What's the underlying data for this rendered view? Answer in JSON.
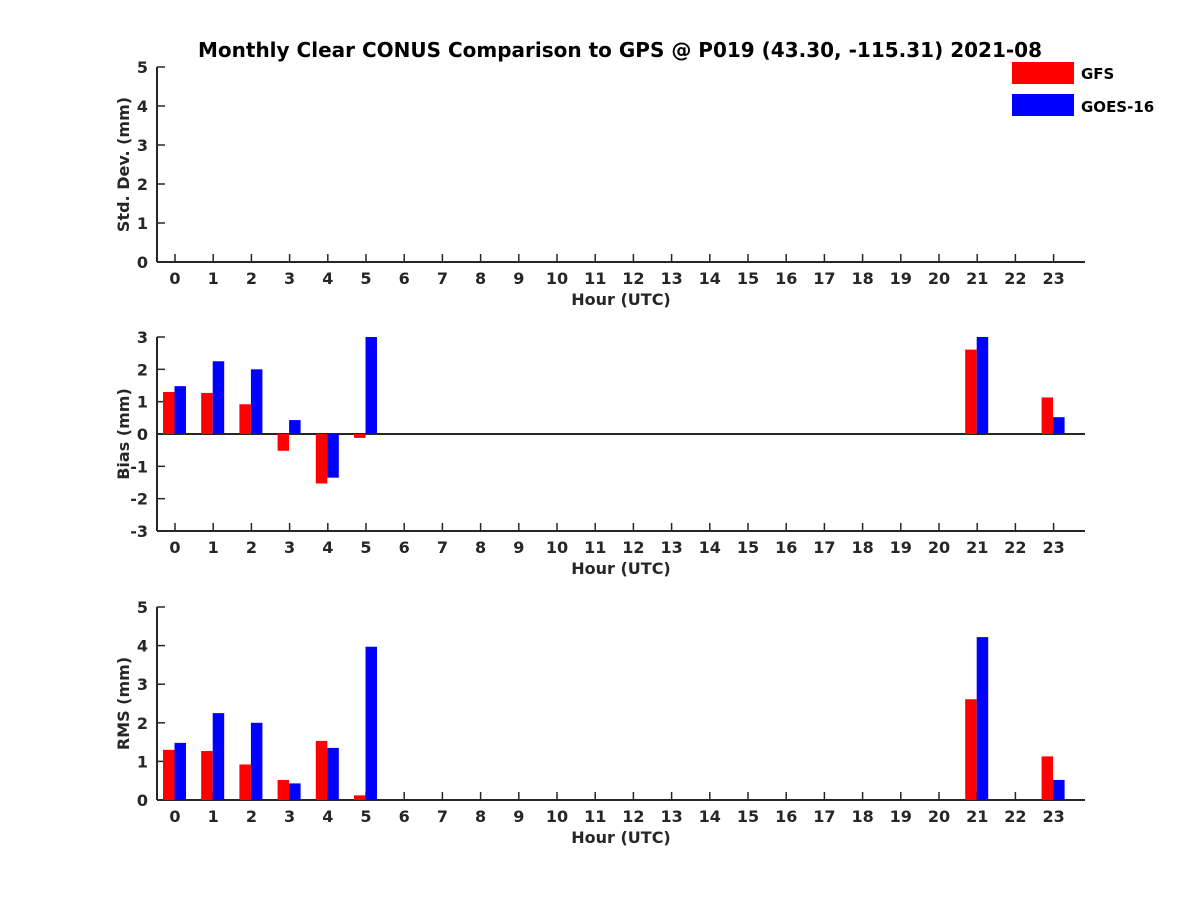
{
  "title": "Monthly Clear CONUS Comparison to GPS @ P019 (43.30, -115.31) 2021-08",
  "legend": [
    {
      "name": "GFS",
      "color": "#ff0000"
    },
    {
      "name": "GOES-16",
      "color": "#0000ff"
    }
  ],
  "chart_data": [
    {
      "type": "bar",
      "panel": "std",
      "xlabel": "Hour (UTC)",
      "ylabel": "Std. Dev. (mm)",
      "ylim": [
        0,
        5
      ],
      "yticks": [
        0,
        1,
        2,
        3,
        4,
        5
      ],
      "categories": [
        "0",
        "1",
        "2",
        "3",
        "4",
        "5",
        "6",
        "7",
        "8",
        "9",
        "10",
        "11",
        "12",
        "13",
        "14",
        "15",
        "16",
        "17",
        "18",
        "19",
        "20",
        "21",
        "22",
        "23"
      ],
      "series": [
        {
          "name": "GFS",
          "color": "#ff0000",
          "values": [
            null,
            null,
            null,
            null,
            null,
            null,
            null,
            null,
            null,
            null,
            null,
            null,
            null,
            null,
            null,
            null,
            null,
            null,
            null,
            null,
            null,
            null,
            null,
            null
          ]
        },
        {
          "name": "GOES-16",
          "color": "#0000ff",
          "values": [
            null,
            null,
            null,
            null,
            null,
            null,
            null,
            null,
            null,
            null,
            null,
            null,
            null,
            null,
            null,
            null,
            null,
            null,
            null,
            null,
            null,
            null,
            null,
            null
          ]
        }
      ]
    },
    {
      "type": "bar",
      "panel": "bias",
      "xlabel": "Hour (UTC)",
      "ylabel": "Bias (mm)",
      "ylim": [
        -3,
        3
      ],
      "yticks": [
        -3,
        -2,
        -1,
        0,
        1,
        2,
        3
      ],
      "zero_line": true,
      "categories": [
        "0",
        "1",
        "2",
        "3",
        "4",
        "5",
        "6",
        "7",
        "8",
        "9",
        "10",
        "11",
        "12",
        "13",
        "14",
        "15",
        "16",
        "17",
        "18",
        "19",
        "20",
        "21",
        "22",
        "23"
      ],
      "series": [
        {
          "name": "GFS",
          "color": "#ff0000",
          "values": [
            1.3,
            1.27,
            0.92,
            -0.52,
            -1.53,
            -0.12,
            null,
            null,
            null,
            null,
            null,
            null,
            null,
            null,
            null,
            null,
            null,
            null,
            null,
            null,
            null,
            2.61,
            null,
            1.13
          ]
        },
        {
          "name": "GOES-16",
          "color": "#0000ff",
          "values": [
            1.48,
            2.25,
            2.0,
            0.43,
            -1.35,
            3.0,
            null,
            null,
            null,
            null,
            null,
            null,
            null,
            null,
            null,
            null,
            null,
            null,
            null,
            null,
            null,
            3.0,
            null,
            0.52
          ]
        }
      ]
    },
    {
      "type": "bar",
      "panel": "rms",
      "xlabel": "Hour (UTC)",
      "ylabel": "RMS (mm)",
      "ylim": [
        0,
        5
      ],
      "yticks": [
        0,
        1,
        2,
        3,
        4,
        5
      ],
      "categories": [
        "0",
        "1",
        "2",
        "3",
        "4",
        "5",
        "6",
        "7",
        "8",
        "9",
        "10",
        "11",
        "12",
        "13",
        "14",
        "15",
        "16",
        "17",
        "18",
        "19",
        "20",
        "21",
        "22",
        "23"
      ],
      "series": [
        {
          "name": "GFS",
          "color": "#ff0000",
          "values": [
            1.3,
            1.27,
            0.92,
            0.52,
            1.53,
            0.12,
            null,
            null,
            null,
            null,
            null,
            null,
            null,
            null,
            null,
            null,
            null,
            null,
            null,
            null,
            null,
            2.61,
            null,
            1.13
          ]
        },
        {
          "name": "GOES-16",
          "color": "#0000ff",
          "values": [
            1.48,
            2.25,
            2.0,
            0.43,
            1.35,
            3.97,
            null,
            null,
            null,
            null,
            null,
            null,
            null,
            null,
            null,
            null,
            null,
            null,
            null,
            null,
            null,
            4.22,
            null,
            0.52
          ]
        }
      ]
    }
  ]
}
